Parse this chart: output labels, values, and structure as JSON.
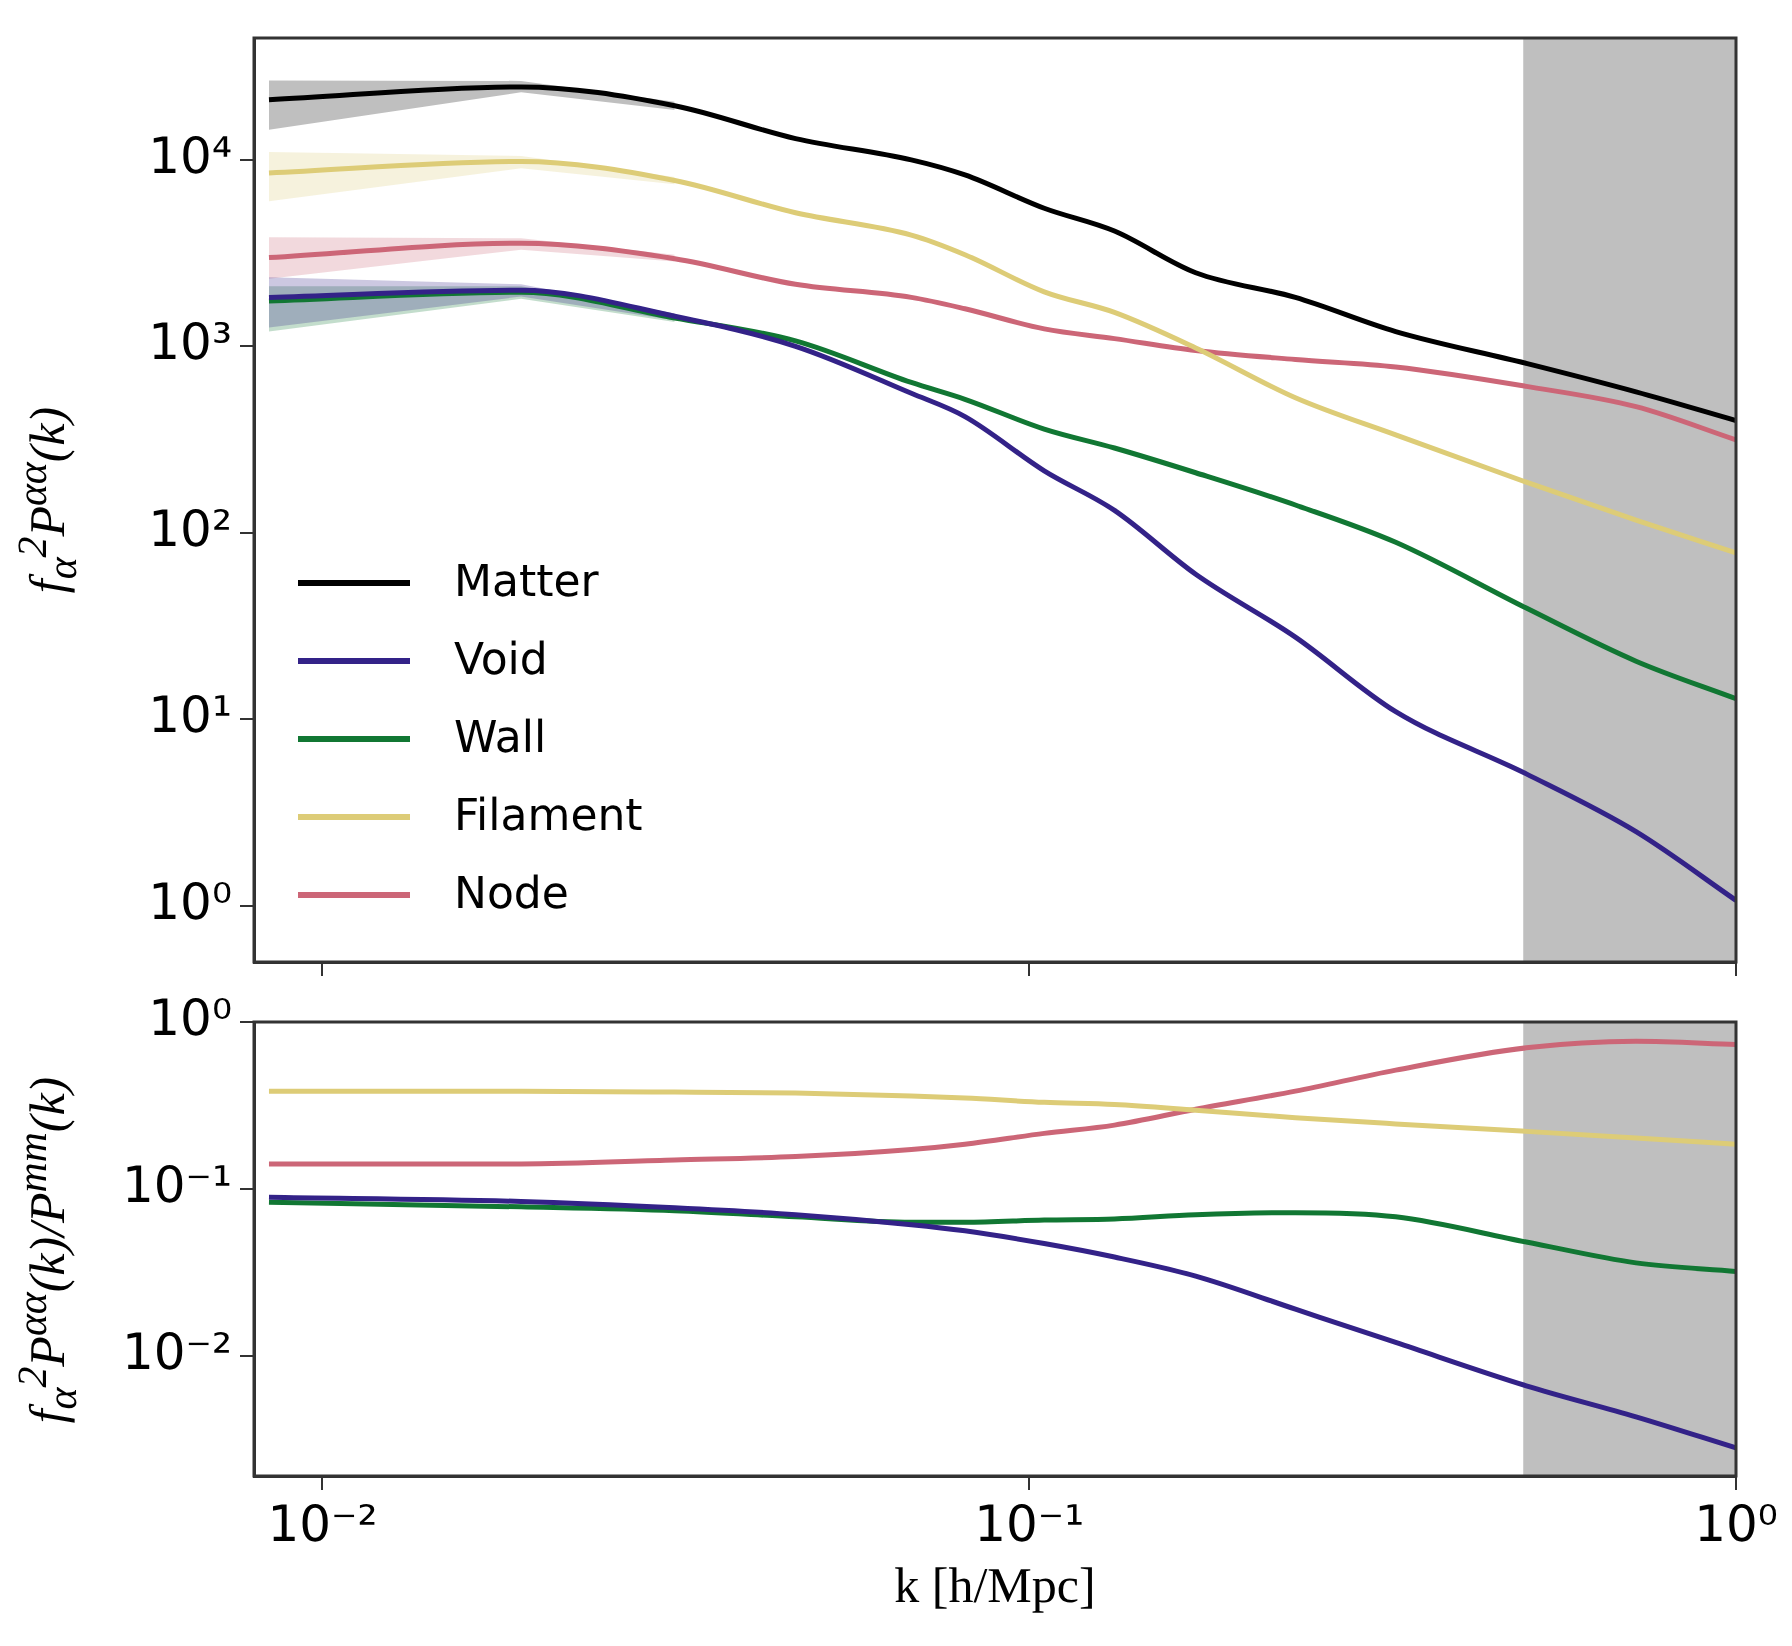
{
  "chart_data": [
    {
      "type": "line",
      "ylabel": "f$_{α}$$^{2}$P$^{αα}$(k)",
      "log": "xy",
      "legend": "bottom left",
      "tick_labels": "y",
      "x": [
        0.0084,
        0.0191,
        0.0315,
        0.0467,
        0.0681,
        0.0811,
        0.105,
        0.132,
        0.172,
        0.238,
        0.33,
        0.505,
        0.722,
        1.0
      ],
      "xlim": [
        0.008,
        1
      ],
      "xticks": [
        {
          "value": 0.01,
          "label": null
        },
        {
          "value": 0.1,
          "label": null
        },
        {
          "value": 1,
          "label": null
        }
      ],
      "ylim": [
        0.5,
        45000
      ],
      "yticks": [
        {
          "value": 1,
          "label": "10⁰"
        },
        {
          "value": 10,
          "label": "10¹"
        },
        {
          "value": 100,
          "label": "10²"
        },
        {
          "value": 1000,
          "label": "10³"
        },
        {
          "value": 10000,
          "label": "10⁴"
        }
      ],
      "bands": [
        {
          "axis": "x",
          "from": 0.5,
          "to": 1,
          "color": "#bfbfbf"
        }
      ],
      "series": [
        {
          "name": "Matter",
          "color": "#000000",
          "values": [
            21000,
            24600,
            19500,
            13000,
            10000,
            8300,
            5500,
            4150,
            2480,
            1830,
            1200,
            810,
            570,
            400
          ],
          "lower": [
            14500,
            23000,
            18500,
            null,
            null,
            null,
            null,
            null,
            null,
            null,
            null,
            null,
            null,
            null
          ],
          "upper": [
            26600,
            26500,
            20500,
            null,
            null,
            null,
            null,
            null,
            null,
            null,
            null,
            null,
            null,
            null
          ]
        },
        {
          "name": "Void",
          "color": "#332288",
          "values": [
            1830,
            2000,
            1450,
            1000,
            560,
            420,
            215,
            132,
            60,
            27.6,
            11,
            5.1,
            2.5,
            1.07
          ],
          "lower": [
            1260,
            1850,
            1380,
            null,
            null,
            null,
            null,
            null,
            null,
            null,
            null,
            null,
            null,
            null
          ],
          "upper": [
            2350,
            2150,
            1500,
            null,
            null,
            null,
            null,
            null,
            null,
            null,
            null,
            null,
            null,
            null
          ]
        },
        {
          "name": "Wall",
          "color": "#117733",
          "values": [
            1750,
            1950,
            1420,
            1070,
            640,
            520,
            360,
            285,
            210,
            141,
            89,
            39.5,
            20.5,
            12.9
          ],
          "lower": [
            1200,
            1800,
            1350,
            null,
            null,
            null,
            null,
            null,
            null,
            null,
            null,
            null,
            null,
            null
          ],
          "upper": [
            2100,
            2100,
            1500,
            null,
            null,
            null,
            null,
            null,
            null,
            null,
            null,
            null,
            null,
            null
          ]
        },
        {
          "name": "Filament",
          "color": "#ddcc77",
          "values": [
            8500,
            9800,
            7750,
            5200,
            3950,
            3100,
            1960,
            1520,
            980,
            530,
            335,
            187,
            117,
            78
          ],
          "lower": [
            6000,
            9000,
            7400,
            null,
            null,
            null,
            null,
            null,
            null,
            null,
            null,
            null,
            null,
            null
          ],
          "upper": [
            11000,
            10500,
            8100,
            null,
            null,
            null,
            null,
            null,
            null,
            null,
            null,
            null,
            null,
            null
          ]
        },
        {
          "name": "Node",
          "color": "#cc6677",
          "values": [
            2990,
            3570,
            2950,
            2150,
            1830,
            1590,
            1240,
            1100,
            950,
            850,
            775,
            610,
            475,
            315
          ],
          "lower": [
            2300,
            3300,
            2850,
            null,
            null,
            null,
            null,
            null,
            null,
            null,
            null,
            null,
            null,
            null
          ],
          "upper": [
            3850,
            3800,
            3100,
            null,
            null,
            null,
            null,
            null,
            null,
            null,
            null,
            null,
            null,
            null
          ]
        }
      ]
    },
    {
      "type": "line",
      "xlabel": "k [h/Mpc]",
      "ylabel": "f$_{α}$$^{2}$P$^{αα}$(k)/P$^{mm}$(k)",
      "log": "xy",
      "x": [
        0.0084,
        0.0191,
        0.0315,
        0.0467,
        0.0681,
        0.0811,
        0.105,
        0.132,
        0.172,
        0.238,
        0.33,
        0.505,
        0.722,
        1.0
      ],
      "xlim": [
        0.008,
        1
      ],
      "xticks": [
        {
          "value": 0.01,
          "label": "10⁻²"
        },
        {
          "value": 0.1,
          "label": "10⁻¹"
        },
        {
          "value": 1,
          "label": "10⁰"
        }
      ],
      "ylim": [
        0.0019,
        1
      ],
      "yticks": [
        {
          "value": 0.01,
          "label": "10⁻²"
        },
        {
          "value": 0.1,
          "label": "10⁻¹"
        },
        {
          "value": 1,
          "label": "10⁰"
        }
      ],
      "bands": [
        {
          "axis": "x",
          "from": 0.5,
          "to": 1,
          "color": "#bfbfbf"
        }
      ],
      "series": [
        {
          "color": "#332288",
          "values": [
            0.089,
            0.084,
            0.077,
            0.07,
            0.061,
            0.056,
            0.047,
            0.039,
            0.03,
            0.019,
            0.012,
            0.0066,
            0.0043,
            0.0028
          ]
        },
        {
          "color": "#117733",
          "values": [
            0.083,
            0.078,
            0.074,
            0.068,
            0.063,
            0.063,
            0.065,
            0.066,
            0.07,
            0.072,
            0.068,
            0.048,
            0.036,
            0.032
          ]
        },
        {
          "color": "#ddcc77",
          "values": [
            0.385,
            0.385,
            0.38,
            0.375,
            0.36,
            0.35,
            0.33,
            0.32,
            0.296,
            0.267,
            0.245,
            0.221,
            0.202,
            0.185
          ]
        },
        {
          "color": "#cc6677",
          "values": [
            0.141,
            0.141,
            0.149,
            0.156,
            0.172,
            0.185,
            0.215,
            0.241,
            0.3,
            0.385,
            0.515,
            0.7,
            0.766,
            0.733
          ]
        }
      ]
    }
  ]
}
